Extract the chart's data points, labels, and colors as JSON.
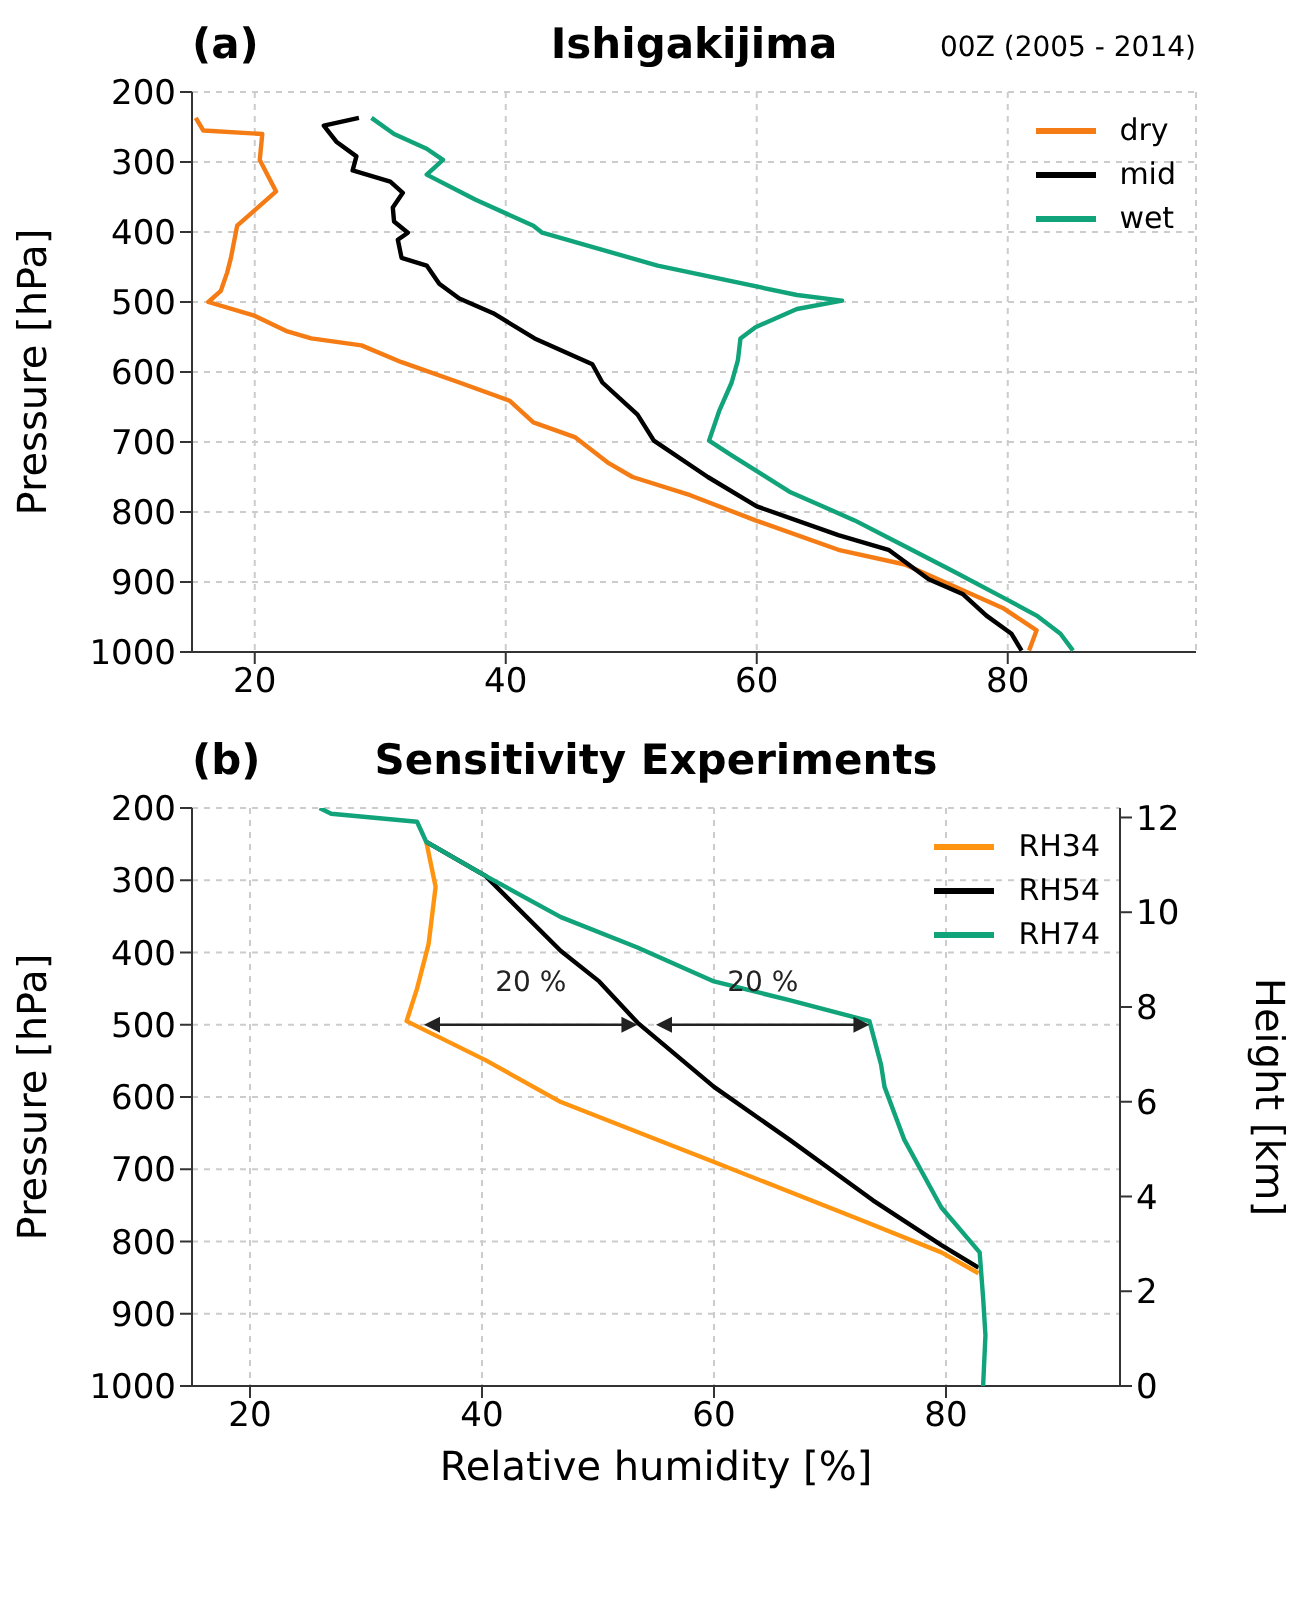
{
  "chart_data": [
    {
      "type": "line",
      "title": "Ishigakijima",
      "subtitle": "00Z (2005 - 2014)",
      "ylabel": "Pressure [hPa]",
      "annotations": [
        "(a)"
      ],
      "xlim": [
        15,
        95
      ],
      "xticks": [
        20,
        40,
        60,
        80
      ],
      "ylim": [
        1000,
        200
      ],
      "yticks": [
        200,
        300,
        400,
        500,
        600,
        700,
        800,
        900,
        1000
      ],
      "grid": true,
      "legend": "top right",
      "series": [
        {
          "name": "dry",
          "color": "#f57c14",
          "x": [
            15.3,
            15.9,
            20.6,
            20.4,
            21.7,
            18.6,
            18.1,
            17.8,
            17.3,
            16.3,
            19.9,
            22.6,
            24.5,
            28.5,
            31.7,
            36.3,
            40.3,
            42.2,
            45.5,
            48.1,
            50.1,
            54.7,
            59.9,
            66.5,
            71.8,
            79.6,
            82.3,
            81.7
          ],
          "values": [
            237,
            255,
            260,
            297,
            342,
            391,
            437,
            458,
            484,
            500,
            519,
            542,
            552,
            562,
            586,
            615,
            641,
            672,
            693,
            729,
            750,
            776,
            812,
            854,
            875,
            937,
            969,
            998
          ]
        },
        {
          "name": "mid",
          "color": "#000000",
          "x": [
            28.3,
            25.5,
            26.5,
            28.1,
            27.8,
            30.8,
            31.8,
            31.0,
            31.1,
            32.2,
            31.4,
            31.7,
            33.7,
            34.7,
            36.3,
            39.0,
            42.3,
            46.9,
            47.7,
            50.5,
            51.8,
            56.1,
            60.0,
            66.5,
            70.5,
            73.7,
            76.4,
            78.3,
            80.3,
            81.1
          ],
          "values": [
            237,
            248,
            271,
            292,
            312,
            328,
            344,
            365,
            385,
            401,
            411,
            437,
            448,
            474,
            495,
            516,
            552,
            589,
            615,
            661,
            698,
            750,
            792,
            833,
            854,
            896,
            917,
            948,
            974,
            998
          ]
        },
        {
          "name": "wet",
          "color": "#11a37a",
          "x": [
            29.3,
            31.1,
            33.7,
            35.0,
            33.7,
            37.6,
            42.2,
            42.9,
            52.1,
            63.2,
            66.8,
            63.2,
            59.9,
            58.7,
            58.5,
            58.0,
            57.0,
            56.2,
            58.0,
            62.6,
            67.8,
            71.8,
            75.7,
            79.6,
            82.3,
            84.2,
            85.2
          ],
          "values": [
            237,
            260,
            281,
            297,
            318,
            354,
            391,
            401,
            448,
            490,
            498,
            510,
            536,
            552,
            583,
            615,
            656,
            698,
            719,
            771,
            812,
            849,
            885,
            922,
            948,
            974,
            998
          ]
        }
      ]
    },
    {
      "type": "line",
      "title": "Sensitivity Experiments",
      "xlabel": "Relative humidity [%]",
      "ylabel": "Pressure [hPa]",
      "y2label": "Height [km]",
      "annotations": [
        "(b)",
        "20 %",
        "20 %"
      ],
      "xlim": [
        15,
        95
      ],
      "xticks": [
        20,
        40,
        60,
        80
      ],
      "ylim": [
        1000,
        200
      ],
      "yticks": [
        200,
        300,
        400,
        500,
        600,
        700,
        800,
        900,
        1000
      ],
      "y2lim": [
        0,
        12.2
      ],
      "y2ticks": [
        0,
        2,
        4,
        6,
        8,
        10,
        12
      ],
      "grid": true,
      "legend": "top right",
      "series": [
        {
          "name": "RH34",
          "color": "#ff9410",
          "x": [
            35.2,
            36.0,
            35.4,
            34.4,
            33.5,
            40.3,
            46.8,
            60.0,
            73.1,
            79.6,
            82.8
          ],
          "values": [
            247,
            309,
            388,
            450,
            495,
            549,
            607,
            690,
            773,
            815,
            844
          ]
        },
        {
          "name": "RH54",
          "color": "#000000",
          "x": [
            35.2,
            40.3,
            46.8,
            50.1,
            53.4,
            60.0,
            66.5,
            73.7,
            79.6,
            82.8
          ],
          "values": [
            247,
            294,
            398,
            440,
            497,
            586,
            659,
            743,
            805,
            836
          ]
        },
        {
          "name": "RH74",
          "color": "#11a37a",
          "x": [
            26.0,
            27.0,
            34.4,
            35.2,
            40.3,
            46.8,
            53.4,
            60.0,
            66.5,
            73.4,
            73.7,
            74.4,
            74.7,
            76.4,
            79.6,
            82.9,
            83.2,
            83.4,
            83.2
          ],
          "values": [
            200,
            208,
            219,
            247,
            294,
            351,
            393,
            440,
            466,
            495,
            513,
            555,
            586,
            659,
            753,
            815,
            878,
            930,
            1000
          ]
        }
      ]
    }
  ]
}
